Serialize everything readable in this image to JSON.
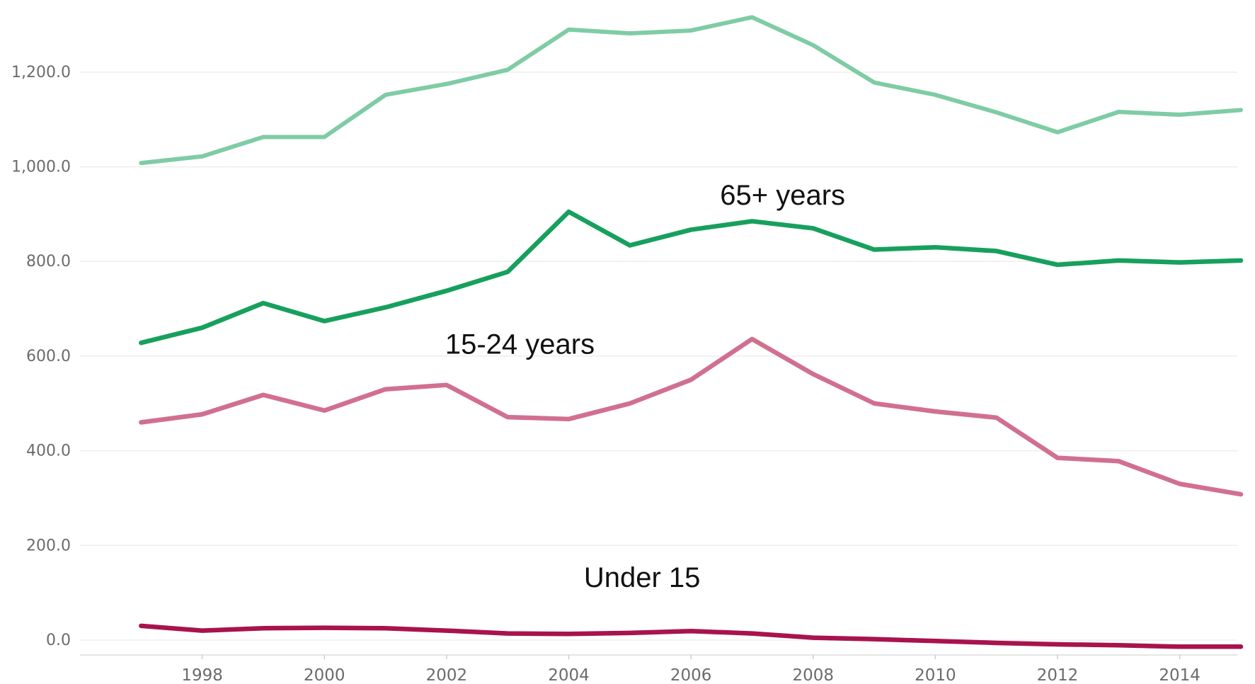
{
  "chart_data": {
    "type": "line",
    "title": "",
    "xlabel": "",
    "ylabel": "",
    "x": [
      1997,
      1998,
      1999,
      2000,
      2001,
      2002,
      2003,
      2004,
      2005,
      2006,
      2007,
      2008,
      2009,
      2010,
      2011,
      2012,
      2013,
      2014,
      2015
    ],
    "xlim": [
      1996,
      2015
    ],
    "ylim": [
      -30,
      1330
    ],
    "x_ticks": [
      "1998",
      "2000",
      "2002",
      "2004",
      "2006",
      "2008",
      "2010",
      "2012",
      "2014"
    ],
    "y_ticks": [
      "0.0",
      "200.0",
      "400.0",
      "600.0",
      "800.0",
      "1,000.0",
      "1,200.0"
    ],
    "y_tick_values": [
      0,
      200,
      400,
      600,
      800,
      1000,
      1200
    ],
    "grid": "horizontal",
    "series": [
      {
        "color": "#7fcca4",
        "values": [
          1008,
          1022,
          1063,
          1063,
          1152,
          1175,
          1205,
          1290,
          1282,
          1288,
          1316,
          1257,
          1178,
          1152,
          1115,
          1073,
          1116,
          1110,
          1120
        ]
      },
      {
        "name": "65+ years",
        "color": "#17a05d",
        "values": [
          628,
          660,
          712,
          674,
          703,
          738,
          778,
          905,
          834,
          867,
          885,
          870,
          825,
          830,
          822,
          793,
          802,
          798,
          802
        ]
      },
      {
        "name": "15-24 years",
        "color": "#d1708e",
        "values": [
          460,
          477,
          518,
          485,
          530,
          539,
          471,
          467,
          500,
          550,
          636,
          562,
          500,
          483,
          470,
          385,
          378,
          330,
          308
        ]
      },
      {
        "name": "Under 15",
        "color": "#a8134e",
        "values": [
          30,
          20,
          25,
          26,
          25,
          20,
          14,
          13,
          15,
          19,
          14,
          5,
          2,
          -2,
          -6,
          -9,
          -11,
          -14,
          -14
        ]
      }
    ]
  }
}
